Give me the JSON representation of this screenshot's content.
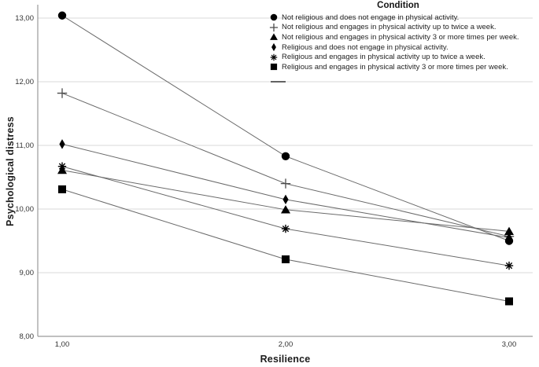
{
  "chart_data": {
    "type": "line",
    "legend_title": "Condition",
    "xlabel": "Resilience",
    "ylabel": "Psychological distress",
    "x": [
      1.0,
      2.0,
      3.0
    ],
    "x_tick_labels": [
      "1,00",
      "2,00",
      "3,00"
    ],
    "y_ticks": [
      8,
      9,
      10,
      11,
      12,
      13
    ],
    "y_tick_labels": [
      "8,00",
      "9,00",
      "10,00",
      "11,00",
      "12,00",
      "13,00"
    ],
    "ylim": [
      8,
      13.2
    ],
    "grid": true,
    "legend_position": "top-right-inside",
    "series": [
      {
        "name": "Not religious and does not engage in physical activity.",
        "marker": "circle",
        "values": [
          13.04,
          10.83,
          9.5
        ]
      },
      {
        "name": "Not religious and engages in physical activity up to twice a week.",
        "marker": "plus",
        "values": [
          11.82,
          10.4,
          9.57
        ]
      },
      {
        "name": "Not religious and engages in physical activity 3 or more times per week.",
        "marker": "triangle",
        "values": [
          10.61,
          9.99,
          9.65
        ]
      },
      {
        "name": "Religious and does not engage in physical activity.",
        "marker": "diamond",
        "values": [
          11.02,
          10.15,
          9.55
        ]
      },
      {
        "name": "Religious and engages in physical activity up to twice a week.",
        "marker": "asterisk",
        "values": [
          10.67,
          9.69,
          9.11
        ]
      },
      {
        "name": "Religious and engages in physical activity 3 or more times per week.",
        "marker": "square",
        "values": [
          10.31,
          9.21,
          8.55
        ]
      }
    ],
    "colors": {
      "line": "#6a6a6a",
      "marker": "#000000",
      "gridline": "#d9d9d9",
      "axis": "#9a9a9a",
      "tick_text": "#333333"
    }
  }
}
